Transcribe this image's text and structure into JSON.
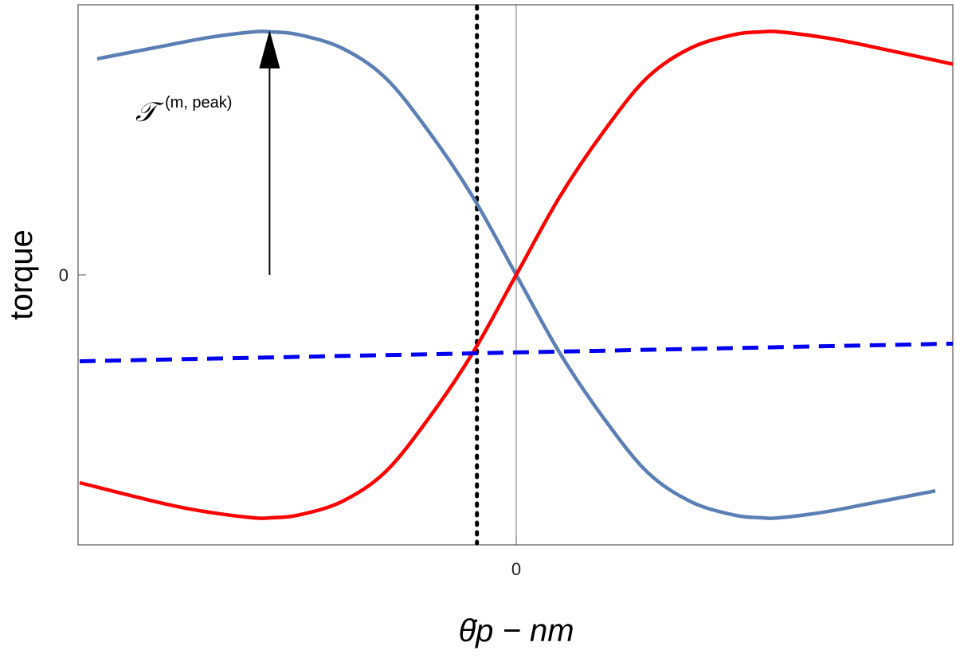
{
  "chart_data": {
    "type": "line",
    "xlabel": "θ̇p − nm",
    "ylabel": "torque",
    "x_ticks": [
      "0"
    ],
    "y_ticks": [
      "0"
    ],
    "xlim": [
      -1,
      1
    ],
    "ylim": [
      -1,
      1
    ],
    "grid": false,
    "legend": "none",
    "annotation": {
      "text": "𝒯",
      "superscript": "(m, peak)",
      "arrow_x": -0.565,
      "arrow_from_y": 0,
      "arrow_to_y": 0.9
    },
    "vline_dotted_x": -0.09,
    "series": [
      {
        "color": "#5b7fb5",
        "style": "solid",
        "x": [
          -0.96,
          -0.8,
          -0.7,
          -0.6,
          -0.565,
          -0.5,
          -0.4,
          -0.3,
          -0.2,
          -0.1,
          0,
          0.1,
          0.2,
          0.3,
          0.4,
          0.5,
          0.565,
          0.6,
          0.7,
          0.8,
          0.96
        ],
        "y": [
          0.8,
          0.85,
          0.88,
          0.9,
          0.9,
          0.89,
          0.84,
          0.73,
          0.53,
          0.29,
          0,
          -0.29,
          -0.53,
          -0.73,
          -0.84,
          -0.89,
          -0.9,
          -0.9,
          -0.88,
          -0.85,
          -0.8
        ]
      },
      {
        "color": "#ff0000",
        "style": "solid",
        "x": [
          -1,
          -0.8,
          -0.7,
          -0.6,
          -0.565,
          -0.5,
          -0.4,
          -0.3,
          -0.2,
          -0.1,
          0,
          0.1,
          0.2,
          0.3,
          0.4,
          0.5,
          0.565,
          0.6,
          0.7,
          0.8,
          1
        ],
        "y": [
          -0.77,
          -0.85,
          -0.88,
          -0.9,
          -0.9,
          -0.89,
          -0.84,
          -0.73,
          -0.53,
          -0.29,
          0,
          0.29,
          0.53,
          0.73,
          0.84,
          0.89,
          0.9,
          0.9,
          0.88,
          0.85,
          0.78
        ]
      },
      {
        "color": "#0000ee",
        "style": "dashed",
        "x": [
          -1,
          1
        ],
        "y": [
          -0.32,
          -0.255
        ]
      }
    ]
  }
}
